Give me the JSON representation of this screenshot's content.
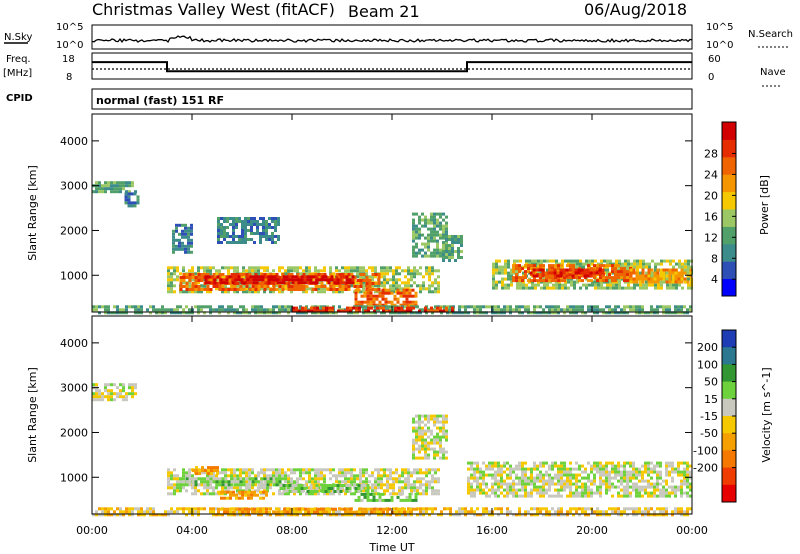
{
  "chart_data": {
    "type": "heatmap",
    "header": {
      "site": "Christmas Valley West (fitACF)",
      "beam": "Beam 21",
      "date": "06/Aug/2018"
    },
    "top_panels": {
      "nsky_label": "N.Sky",
      "nsky_ticks": [
        "10^5",
        "10^0"
      ],
      "nsearch_label": "N.Search",
      "freq_label_line1": "Freq.",
      "freq_label_line2": "[MHz]",
      "freq_ticks": [
        "18",
        "8"
      ],
      "nave_label": "Nave",
      "nave_ticks": [
        "60",
        "0"
      ],
      "cpid_label": "CPID",
      "cpid_text": "normal (fast) 151 RF",
      "freq_series": [
        {
          "t": 0,
          "mhz": 14.5
        },
        {
          "t": 3.0,
          "mhz": 14.5
        },
        {
          "t": 3.0,
          "mhz": 11.0
        },
        {
          "t": 15.0,
          "mhz": 11.0
        },
        {
          "t": 15.0,
          "mhz": 14.5
        },
        {
          "t": 24,
          "mhz": 14.5
        }
      ]
    },
    "x_axis": {
      "label": "Time UT",
      "range_hours": [
        0,
        24
      ],
      "tick_labels": [
        "00:00",
        "04:00",
        "08:00",
        "12:00",
        "16:00",
        "20:00",
        "00:00"
      ]
    },
    "y_axis": {
      "label": "Slant Range [km]",
      "range_km": [
        180,
        4600
      ],
      "tick_values": [
        1000,
        2000,
        3000,
        4000
      ]
    },
    "power_panel": {
      "colorbar_label": "Power [dB]",
      "colorbar_ticks": [
        "28",
        "24",
        "20",
        "16",
        "12",
        "8",
        "4"
      ],
      "colorbar_colors": [
        "#0000ff",
        "#2e4fb6",
        "#3c8c8c",
        "#51a06a",
        "#9bc864",
        "#f5c800",
        "#f59600",
        "#f06400",
        "#e62d00",
        "#d20000"
      ],
      "regions": [
        {
          "t0": 0.0,
          "t1": 1.8,
          "r0": 2850,
          "r1": 3100,
          "level": 3
        },
        {
          "t0": 1.3,
          "t1": 1.8,
          "r0": 2550,
          "r1": 2850,
          "level": 2
        },
        {
          "t0": 3.0,
          "t1": 13.8,
          "r0": 650,
          "r1": 1200,
          "level": 4
        },
        {
          "t0": 3.5,
          "t1": 11.5,
          "r0": 700,
          "r1": 1050,
          "level": 7
        },
        {
          "t0": 4.5,
          "t1": 10.5,
          "r0": 800,
          "r1": 1000,
          "level": 9
        },
        {
          "t0": 3.2,
          "t1": 4.0,
          "r0": 1500,
          "r1": 2150,
          "level": 2
        },
        {
          "t0": 5.0,
          "t1": 7.5,
          "r0": 1700,
          "r1": 2300,
          "level": 2
        },
        {
          "t0": 10.5,
          "t1": 13.0,
          "r0": 350,
          "r1": 700,
          "level": 7
        },
        {
          "t0": 12.8,
          "t1": 14.2,
          "r0": 1400,
          "r1": 2400,
          "level": 3
        },
        {
          "t0": 14.0,
          "t1": 14.8,
          "r0": 1300,
          "r1": 1900,
          "level": 3
        },
        {
          "t0": 16.0,
          "t1": 24.0,
          "r0": 700,
          "r1": 1350,
          "level": 4
        },
        {
          "t0": 16.8,
          "t1": 21.5,
          "r0": 850,
          "r1": 1250,
          "level": 7
        },
        {
          "t0": 17.5,
          "t1": 20.5,
          "r0": 950,
          "r1": 1150,
          "level": 8
        },
        {
          "t0": 21.5,
          "t1": 24.0,
          "r0": 850,
          "r1": 1150,
          "level": 6
        },
        {
          "t0": 0.0,
          "t1": 24.0,
          "r0": 180,
          "r1": 330,
          "level": 3
        },
        {
          "t0": 8.0,
          "t1": 14.5,
          "r0": 190,
          "r1": 300,
          "level": 8
        }
      ]
    },
    "velocity_panel": {
      "colorbar_label": "Velocity [m s^-1]",
      "colorbar_ticks": [
        "200",
        "100",
        "50",
        "15",
        "-15",
        "-50",
        "-100",
        "-200"
      ],
      "colorbar_colors": [
        "#e60000",
        "#f03c00",
        "#f57800",
        "#f5a000",
        "#f5c800",
        "#c8c8be",
        "#6ed23c",
        "#329632",
        "#2d7891",
        "#1e3cb4"
      ],
      "regions": [
        {
          "t0": 0.0,
          "t1": 1.8,
          "r0": 2700,
          "r1": 3100,
          "level": 5
        },
        {
          "t0": 3.0,
          "t1": 13.8,
          "r0": 650,
          "r1": 1200,
          "level": 5
        },
        {
          "t0": 3.5,
          "t1": 7.5,
          "r0": 800,
          "r1": 1000,
          "level": 6
        },
        {
          "t0": 7.5,
          "t1": 11.0,
          "r0": 650,
          "r1": 850,
          "level": 6
        },
        {
          "t0": 4.0,
          "t1": 5.0,
          "r0": 1100,
          "r1": 1250,
          "level": 3
        },
        {
          "t0": 5.0,
          "t1": 7.0,
          "r0": 500,
          "r1": 700,
          "level": 3
        },
        {
          "t0": 10.5,
          "t1": 13.0,
          "r0": 450,
          "r1": 650,
          "level": 6
        },
        {
          "t0": 12.8,
          "t1": 14.2,
          "r0": 1400,
          "r1": 2400,
          "level": 5
        },
        {
          "t0": 15.0,
          "t1": 24.0,
          "r0": 550,
          "r1": 1350,
          "level": 5
        },
        {
          "t0": 0.0,
          "t1": 24.0,
          "r0": 180,
          "r1": 330,
          "level": 4
        },
        {
          "t0": 5.0,
          "t1": 13.0,
          "r0": 190,
          "r1": 320,
          "level": 3
        }
      ]
    }
  }
}
